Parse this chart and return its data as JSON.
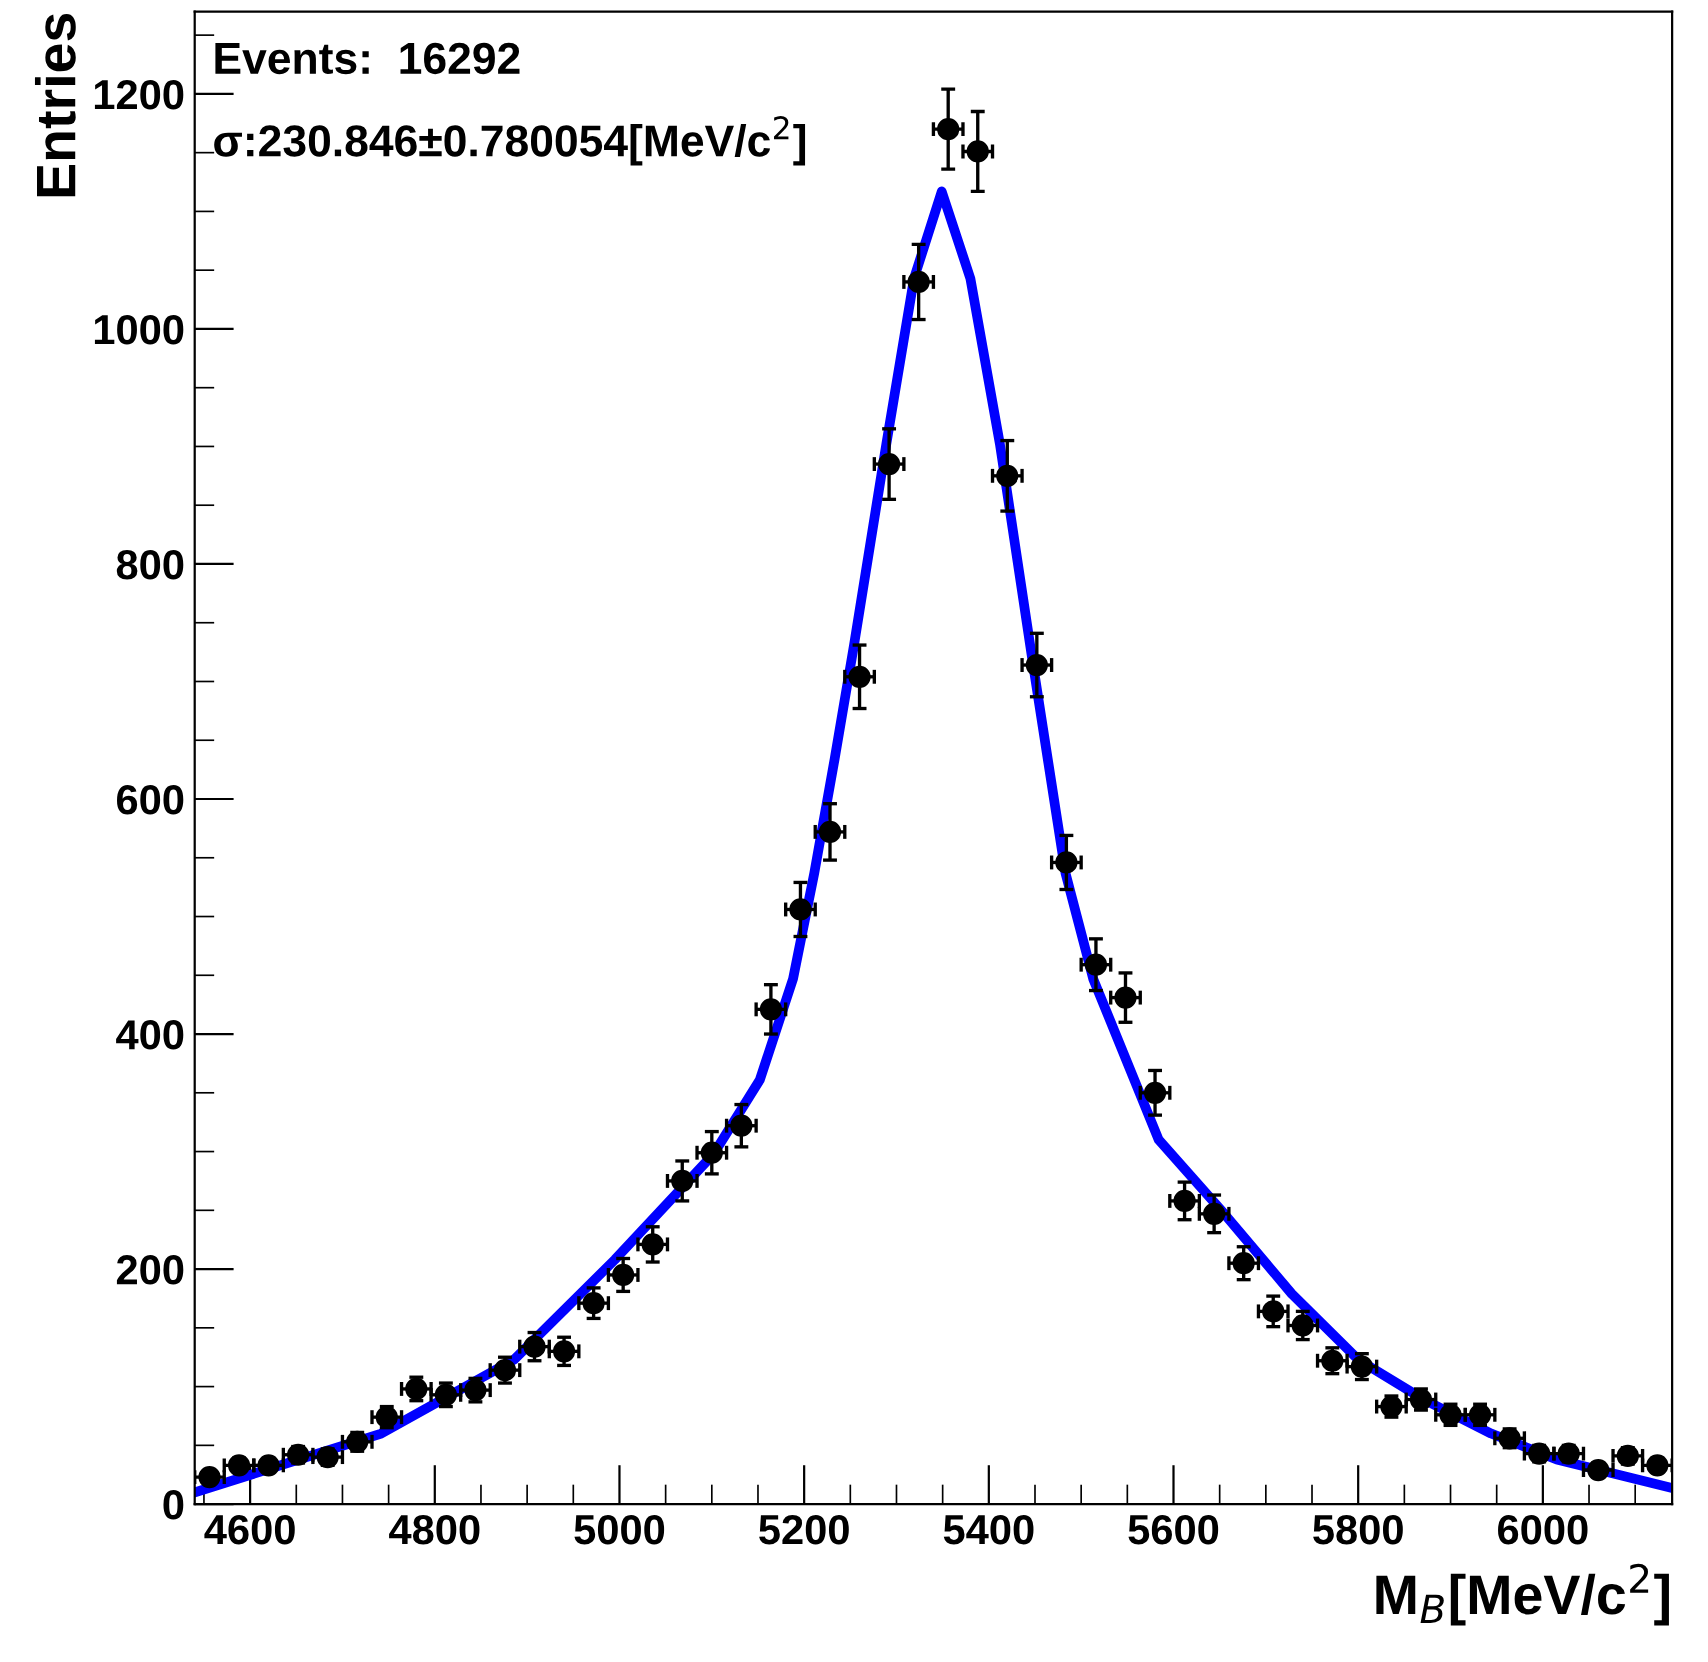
{
  "chart_data": {
    "type": "scatter",
    "xlabel": "M$_{B}$[MeV/c$^{2}$]",
    "ylabel": "Entries",
    "annotations": [
      "Events:  16292",
      "σ:230.846±0.780054[MeV/c$^{2}$]"
    ],
    "xlim": [
      4540,
      6140
    ],
    "ylim": [
      0,
      1270
    ],
    "xticks": [
      4600,
      4800,
      5000,
      5200,
      5400,
      5600,
      5800,
      6000
    ],
    "yticks": [
      0,
      200,
      400,
      600,
      800,
      1000,
      1200
    ],
    "grid": false,
    "legend": false,
    "series": [
      {
        "color": "#000000",
        "marker": "circle",
        "x": [
          4556,
          4588,
          4620,
          4652,
          4684,
          4716,
          4748,
          4780,
          4812,
          4844,
          4876,
          4908,
          4940,
          4972,
          5004,
          5036,
          5068,
          5100,
          5132,
          5164,
          5196,
          5228,
          5260,
          5292,
          5324,
          5356,
          5388,
          5420,
          5452,
          5484,
          5516,
          5548,
          5580,
          5612,
          5644,
          5676,
          5708,
          5740,
          5772,
          5804,
          5836,
          5868,
          5900,
          5932,
          5964,
          5996,
          6028,
          6060,
          6092,
          6124
        ],
        "values": [
          23,
          33,
          33,
          42,
          40,
          53,
          74,
          98,
          93,
          97,
          114,
          134,
          130,
          171,
          195,
          221,
          275,
          299,
          322,
          421,
          506,
          572,
          704,
          885,
          1040,
          1170,
          1151,
          875,
          714,
          546,
          459,
          431,
          350,
          258,
          247,
          205,
          164,
          152,
          122,
          117,
          83,
          89,
          76,
          76,
          56,
          43,
          43,
          29,
          41,
          33
        ],
        "errors": [
          5,
          6,
          6,
          7,
          7,
          8,
          9,
          10,
          10,
          10,
          11,
          12,
          12,
          13,
          14,
          15,
          17,
          18,
          18,
          21,
          23,
          24,
          27,
          30,
          32,
          34,
          34,
          30,
          27,
          23,
          22,
          21,
          19,
          16,
          16,
          14,
          13,
          12,
          11,
          11,
          9,
          9,
          9,
          9,
          8,
          7,
          7,
          6,
          7,
          6
        ],
        "xerrors": [
          16,
          16,
          16,
          16,
          16,
          16,
          16,
          16,
          16,
          16,
          16,
          16,
          16,
          16,
          16,
          16,
          16,
          16,
          16,
          16,
          16,
          16,
          16,
          16,
          16,
          16,
          16,
          16,
          16,
          16,
          16,
          16,
          16,
          16,
          16,
          16,
          16,
          16,
          16,
          16,
          16,
          16,
          16,
          16,
          16,
          16,
          16,
          16,
          16,
          16
        ]
      },
      {
        "type": "line",
        "color": "#0000ff",
        "marker": "none",
        "line_style": "solid",
        "x": [
          4540,
          4742,
          4886,
          4995,
          5102,
          5152,
          5188,
          5211,
          5233,
          5254,
          5289,
          5319,
          5349,
          5380,
          5412,
          5448,
          5483,
          5513,
          5584,
          5655,
          5728,
          5800,
          5871,
          5944,
          6015,
          6138
        ],
        "values": [
          10,
          60,
          123,
          208,
          298,
          361,
          447,
          537,
          634,
          731,
          902,
          1043,
          1117,
          1043,
          902,
          714,
          537,
          447,
          310,
          247,
          179,
          123,
          89,
          60,
          38,
          14
        ]
      }
    ]
  }
}
